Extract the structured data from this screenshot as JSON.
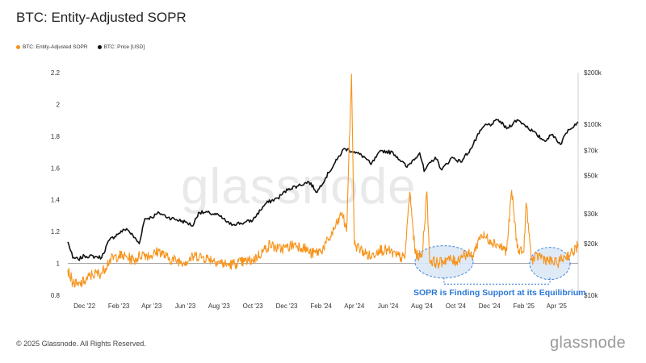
{
  "title": "BTC: Entity-Adjusted SOPR",
  "legend": {
    "sopr_label": "BTC: Entity-Adjusted SOPR",
    "price_label": "BTC: Price [USD]"
  },
  "colors": {
    "sopr": "#f7931a",
    "price": "#111111",
    "baseline": "#9e9e9e",
    "annotation": "#2a78d6",
    "highlight_fill": "#dce8f7"
  },
  "annotation_text": "SOPR is Finding Support at its Equilibrium",
  "watermark": "glassnode",
  "footer": "© 2025 Glassnode. All Rights Reserved.",
  "brand": "glassnode",
  "chart_data": {
    "type": "line",
    "x_ticks": [
      "Dec '22",
      "Feb '23",
      "Apr '23",
      "Jun '23",
      "Aug '23",
      "Oct '23",
      "Dec '23",
      "Feb '24",
      "Apr '24",
      "Jun '24",
      "Aug '24",
      "Oct '24",
      "Dec '24",
      "Feb '25",
      "Apr '25"
    ],
    "y_left_ticks": [
      "2.2",
      "2",
      "1.8",
      "1.6",
      "1.4",
      "1.2",
      "1",
      "0.8"
    ],
    "y_left_range": [
      0.8,
      2.2
    ],
    "y_right_ticks": [
      "$200k",
      "$100k",
      "$70k",
      "$50k",
      "$30k",
      "$20k",
      "$10k"
    ],
    "y_right_scale": "log",
    "y_right_range": [
      10000,
      200000
    ],
    "baseline_value": 1,
    "x_range": [
      "2022-11-01",
      "2025-05-10"
    ],
    "series": [
      {
        "name": "BTC: Entity-Adjusted SOPR",
        "axis": "left",
        "points": [
          [
            "2022-11-01",
            0.96
          ],
          [
            "2022-11-10",
            0.88
          ],
          [
            "2022-11-20",
            0.86
          ],
          [
            "2022-12-01",
            0.89
          ],
          [
            "2022-12-15",
            0.93
          ],
          [
            "2023-01-01",
            0.94
          ],
          [
            "2023-01-15",
            1.02
          ],
          [
            "2023-02-01",
            1.05
          ],
          [
            "2023-02-15",
            1.04
          ],
          [
            "2023-03-01",
            1.02
          ],
          [
            "2023-03-15",
            1.06
          ],
          [
            "2023-04-01",
            1.05
          ],
          [
            "2023-04-15",
            1.08
          ],
          [
            "2023-05-01",
            1.03
          ],
          [
            "2023-05-15",
            1.02
          ],
          [
            "2023-06-01",
            1.01
          ],
          [
            "2023-06-20",
            1.05
          ],
          [
            "2023-07-01",
            1.04
          ],
          [
            "2023-07-15",
            1.03
          ],
          [
            "2023-08-01",
            1.01
          ],
          [
            "2023-08-15",
            0.99
          ],
          [
            "2023-09-01",
            1.0
          ],
          [
            "2023-09-15",
            1.01
          ],
          [
            "2023-10-01",
            1.02
          ],
          [
            "2023-10-20",
            1.08
          ],
          [
            "2023-11-01",
            1.12
          ],
          [
            "2023-11-15",
            1.09
          ],
          [
            "2023-12-01",
            1.1
          ],
          [
            "2023-12-15",
            1.12
          ],
          [
            "2024-01-01",
            1.1
          ],
          [
            "2024-01-15",
            1.06
          ],
          [
            "2024-02-01",
            1.08
          ],
          [
            "2024-02-15",
            1.15
          ],
          [
            "2024-03-01",
            1.25
          ],
          [
            "2024-03-10",
            1.32
          ],
          [
            "2024-03-18",
            1.2
          ],
          [
            "2024-03-27",
            2.19
          ],
          [
            "2024-04-01",
            1.12
          ],
          [
            "2024-04-15",
            1.08
          ],
          [
            "2024-05-01",
            1.04
          ],
          [
            "2024-05-15",
            1.09
          ],
          [
            "2024-06-01",
            1.08
          ],
          [
            "2024-06-15",
            1.05
          ],
          [
            "2024-07-01",
            1.03
          ],
          [
            "2024-07-10",
            1.45
          ],
          [
            "2024-07-20",
            1.06
          ],
          [
            "2024-08-01",
            1.04
          ],
          [
            "2024-08-10",
            1.45
          ],
          [
            "2024-08-15",
            1.02
          ],
          [
            "2024-09-01",
            1.0
          ],
          [
            "2024-09-15",
            1.03
          ],
          [
            "2024-10-01",
            1.01
          ],
          [
            "2024-10-15",
            1.06
          ],
          [
            "2024-11-01",
            1.05
          ],
          [
            "2024-11-15",
            1.18
          ],
          [
            "2024-12-01",
            1.15
          ],
          [
            "2024-12-15",
            1.12
          ],
          [
            "2025-01-01",
            1.08
          ],
          [
            "2025-01-10",
            1.46
          ],
          [
            "2025-01-20",
            1.1
          ],
          [
            "2025-02-01",
            1.07
          ],
          [
            "2025-02-05",
            1.38
          ],
          [
            "2025-02-15",
            1.02
          ],
          [
            "2025-03-01",
            1.05
          ],
          [
            "2025-03-15",
            1.02
          ],
          [
            "2025-04-01",
            1.0
          ],
          [
            "2025-04-15",
            1.04
          ],
          [
            "2025-05-01",
            1.07
          ],
          [
            "2025-05-10",
            1.12
          ]
        ]
      },
      {
        "name": "BTC: Price [USD]",
        "axis": "right",
        "points": [
          [
            "2022-11-01",
            20500
          ],
          [
            "2022-11-10",
            16500
          ],
          [
            "2022-11-20",
            16200
          ],
          [
            "2022-12-01",
            17000
          ],
          [
            "2022-12-20",
            16800
          ],
          [
            "2023-01-01",
            16600
          ],
          [
            "2023-01-15",
            21000
          ],
          [
            "2023-02-01",
            23000
          ],
          [
            "2023-02-15",
            24500
          ],
          [
            "2023-03-10",
            20000
          ],
          [
            "2023-03-20",
            28000
          ],
          [
            "2023-04-01",
            28500
          ],
          [
            "2023-04-15",
            30300
          ],
          [
            "2023-05-01",
            28500
          ],
          [
            "2023-06-01",
            26800
          ],
          [
            "2023-06-15",
            25500
          ],
          [
            "2023-06-25",
            30500
          ],
          [
            "2023-07-15",
            30200
          ],
          [
            "2023-08-01",
            29200
          ],
          [
            "2023-08-20",
            26000
          ],
          [
            "2023-09-15",
            26500
          ],
          [
            "2023-10-01",
            27500
          ],
          [
            "2023-10-25",
            34500
          ],
          [
            "2023-11-15",
            37000
          ],
          [
            "2023-12-05",
            42000
          ],
          [
            "2023-12-20",
            43500
          ],
          [
            "2024-01-10",
            46000
          ],
          [
            "2024-01-25",
            40000
          ],
          [
            "2024-02-15",
            52000
          ],
          [
            "2024-03-01",
            62000
          ],
          [
            "2024-03-14",
            72000
          ],
          [
            "2024-04-01",
            69000
          ],
          [
            "2024-04-20",
            64000
          ],
          [
            "2024-05-01",
            58000
          ],
          [
            "2024-05-20",
            70000
          ],
          [
            "2024-06-10",
            68000
          ],
          [
            "2024-07-05",
            56000
          ],
          [
            "2024-07-28",
            68000
          ],
          [
            "2024-08-05",
            53000
          ],
          [
            "2024-08-25",
            64000
          ],
          [
            "2024-09-06",
            54000
          ],
          [
            "2024-09-25",
            64000
          ],
          [
            "2024-10-10",
            60000
          ],
          [
            "2024-10-29",
            72000
          ],
          [
            "2024-11-12",
            88000
          ],
          [
            "2024-11-22",
            98000
          ],
          [
            "2024-12-05",
            100000
          ],
          [
            "2024-12-17",
            106000
          ],
          [
            "2025-01-01",
            94000
          ],
          [
            "2025-01-20",
            106000
          ],
          [
            "2025-02-01",
            100000
          ],
          [
            "2025-02-25",
            86000
          ],
          [
            "2025-03-10",
            80000
          ],
          [
            "2025-03-25",
            87000
          ],
          [
            "2025-04-08",
            76000
          ],
          [
            "2025-04-22",
            93000
          ],
          [
            "2025-05-10",
            103000
          ]
        ]
      }
    ]
  }
}
